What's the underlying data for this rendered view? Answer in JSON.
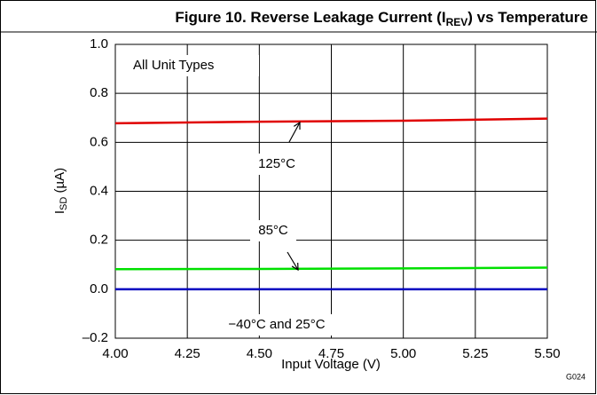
{
  "chart_data": {
    "type": "line",
    "title_parts": [
      "Figure 10. Reverse Leakage Current (I",
      "REV",
      ") vs Temperature"
    ],
    "x_label": "Input Voltage (V)",
    "y_label_parts": [
      "I",
      "SD",
      " (µA)"
    ],
    "annotations": [
      "All Unit Types",
      "G024"
    ],
    "x": [
      4.0,
      4.5,
      5.0,
      5.5
    ],
    "series": [
      {
        "name": "125°C",
        "color": "#e00000",
        "values": [
          0.678,
          0.684,
          0.688,
          0.697
        ]
      },
      {
        "name": "85°C",
        "color": "#00e000",
        "values": [
          0.082,
          0.083,
          0.085,
          0.088
        ]
      },
      {
        "name": "−40°C and 25°C",
        "color": "#0000c0",
        "values": [
          0,
          0,
          0,
          0
        ]
      }
    ],
    "xlim": [
      4.0,
      5.5
    ],
    "xticks": [
      {
        "value": 4,
        "label": "4.00"
      },
      {
        "value": 4.25,
        "label": "4.25"
      },
      {
        "value": 4.5,
        "label": "4.50"
      },
      {
        "value": 4.75,
        "label": "4.75"
      },
      {
        "value": 5,
        "label": "5.00"
      },
      {
        "value": 5.25,
        "label": "5.25"
      },
      {
        "value": 5.5,
        "label": "5.50"
      }
    ],
    "ylim": [
      -0.2,
      1.0
    ],
    "yticks": [
      {
        "value": -0.2,
        "label": "–0.2"
      },
      {
        "value": 0,
        "label": "0.0"
      },
      {
        "value": 0.2,
        "label": "0.2"
      },
      {
        "value": 0.4,
        "label": "0.4"
      },
      {
        "value": 0.6,
        "label": "0.6"
      },
      {
        "value": 0.8,
        "label": "0.8"
      },
      {
        "value": 1,
        "label": "1.0"
      }
    ],
    "grid": true
  }
}
